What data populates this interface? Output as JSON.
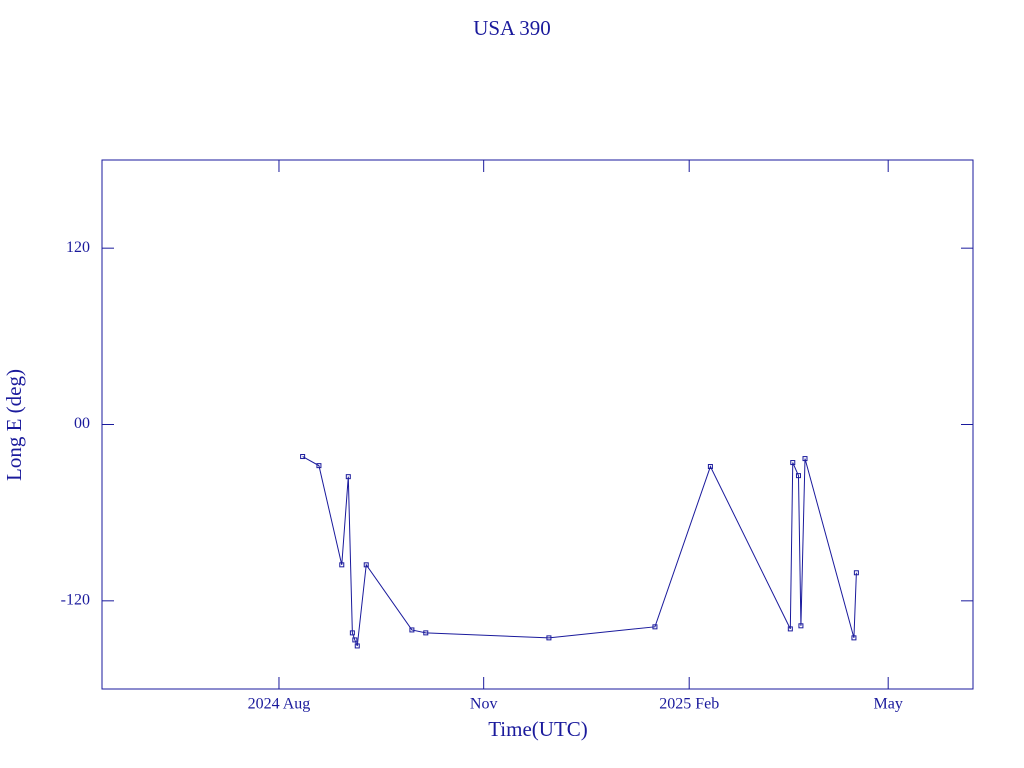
{
  "chart_data": {
    "type": "line",
    "title": "USA 390",
    "x_label": "Time(UTC)",
    "y_label": "Long E (deg)",
    "color": "#1a1a9c",
    "series": [
      {
        "name": "USA 390",
        "color": "#1a1a9c",
        "x": [
          2024.611,
          2024.631,
          2024.659,
          2024.667,
          2024.672,
          2024.675,
          2024.678,
          2024.689,
          2024.745,
          2024.762,
          2024.913,
          2025.043,
          2025.111,
          2025.209,
          2025.212,
          2025.219,
          2025.222,
          2025.227,
          2025.287,
          2025.29
        ],
        "values": [
          -21.8,
          -28,
          -95.5,
          -35.5,
          -141.8,
          -146.6,
          -150.7,
          -95.5,
          -139.8,
          -141.8,
          -145.2,
          -137.7,
          -28.6,
          -139.1,
          -25.9,
          -34.8,
          -137,
          -23.2,
          -145.2,
          -100.9
        ]
      }
    ],
    "xlim": [
      2024.365,
      2025.433
    ],
    "xticks": [
      {
        "value": 2024.582,
        "label": "2024 Aug"
      },
      {
        "value": 2024.833,
        "label": "Nov"
      },
      {
        "value": 2025.085,
        "label": "2025 Feb"
      },
      {
        "value": 2025.329,
        "label": "May"
      }
    ],
    "ylim": [
      -180,
      180
    ],
    "yticks": [
      -120,
      {
        "value": 0,
        "label": "00"
      },
      120
    ]
  }
}
